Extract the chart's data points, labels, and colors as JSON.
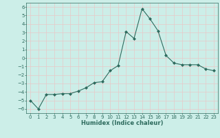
{
  "x": [
    0,
    1,
    2,
    3,
    4,
    5,
    6,
    7,
    8,
    9,
    10,
    11,
    12,
    13,
    14,
    15,
    16,
    17,
    18,
    19,
    20,
    21,
    22,
    23
  ],
  "y": [
    -5.0,
    -6.0,
    -4.3,
    -4.3,
    -4.2,
    -4.2,
    -3.9,
    -3.5,
    -2.9,
    -2.8,
    -1.5,
    -0.9,
    3.1,
    2.3,
    5.8,
    4.6,
    3.2,
    0.3,
    -0.6,
    -0.8,
    -0.8,
    -0.8,
    -1.3,
    -1.5
  ],
  "line_color": "#2e6b5e",
  "marker": "D",
  "marker_size": 2.0,
  "bg_color": "#cceee8",
  "grid_color": "#e8c8c8",
  "tick_color": "#2e6b5e",
  "label_color": "#2e6b5e",
  "xlabel": "Humidex (Indice chaleur)",
  "ylim": [
    -6.5,
    6.5
  ],
  "xlim": [
    -0.5,
    23.5
  ],
  "yticks": [
    -6,
    -5,
    -4,
    -3,
    -2,
    -1,
    0,
    1,
    2,
    3,
    4,
    5,
    6
  ],
  "xticks": [
    0,
    1,
    2,
    3,
    4,
    5,
    6,
    7,
    8,
    9,
    10,
    11,
    12,
    13,
    14,
    15,
    16,
    17,
    18,
    19,
    20,
    21,
    22,
    23
  ],
  "tick_fontsize": 5.0,
  "xlabel_fontsize": 6.0
}
